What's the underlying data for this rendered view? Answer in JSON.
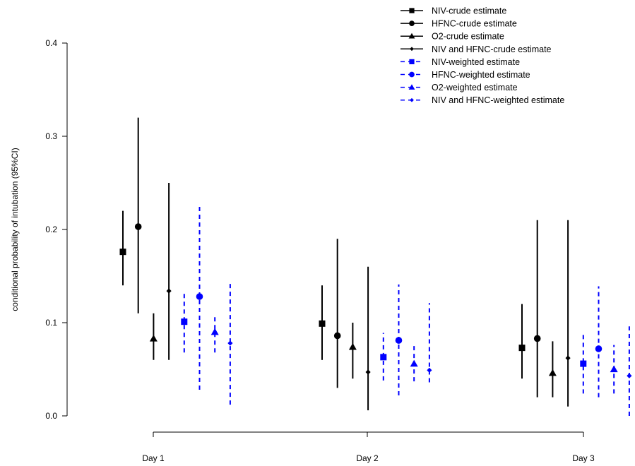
{
  "chart_data": {
    "type": "scatter",
    "ylabel": "conditional probability of intubation (95%CI)",
    "ylim": [
      0.0,
      0.4
    ],
    "yticks": [
      "0.0",
      "0.1",
      "0.2",
      "0.3",
      "0.4"
    ],
    "categories": [
      "Day 1",
      "Day 2",
      "Day 3"
    ],
    "legend_position": "top-right",
    "series": [
      {
        "name": "NIV-crude estimate",
        "color": "#000000",
        "marker": "square",
        "line": "solid",
        "points": [
          {
            "est": 0.176,
            "lo": 0.14,
            "hi": 0.22
          },
          {
            "est": 0.099,
            "lo": 0.06,
            "hi": 0.14
          },
          {
            "est": 0.073,
            "lo": 0.04,
            "hi": 0.12
          }
        ]
      },
      {
        "name": "HFNC-crude estimate",
        "color": "#000000",
        "marker": "circle",
        "line": "solid",
        "points": [
          {
            "est": 0.203,
            "lo": 0.11,
            "hi": 0.32
          },
          {
            "est": 0.086,
            "lo": 0.03,
            "hi": 0.19
          },
          {
            "est": 0.083,
            "lo": 0.02,
            "hi": 0.21
          }
        ]
      },
      {
        "name": "O2-crude estimate",
        "color": "#000000",
        "marker": "triangle",
        "line": "solid",
        "points": [
          {
            "est": 0.083,
            "lo": 0.06,
            "hi": 0.11
          },
          {
            "est": 0.074,
            "lo": 0.04,
            "hi": 0.1
          },
          {
            "est": 0.046,
            "lo": 0.02,
            "hi": 0.08
          }
        ]
      },
      {
        "name": "NIV and HFNC-crude estimate",
        "color": "#000000",
        "marker": "diamond",
        "line": "solid",
        "points": [
          {
            "est": 0.134,
            "lo": 0.06,
            "hi": 0.25
          },
          {
            "est": 0.047,
            "lo": 0.006,
            "hi": 0.16
          },
          {
            "est": 0.062,
            "lo": 0.01,
            "hi": 0.21
          }
        ]
      },
      {
        "name": "NIV-weighted estimate",
        "color": "#0000ff",
        "marker": "square",
        "line": "dashed",
        "points": [
          {
            "est": 0.101,
            "lo": 0.068,
            "hi": 0.131
          },
          {
            "est": 0.063,
            "lo": 0.038,
            "hi": 0.089
          },
          {
            "est": 0.056,
            "lo": 0.024,
            "hi": 0.087
          }
        ]
      },
      {
        "name": "HFNC-weighted estimate",
        "color": "#0000ff",
        "marker": "circle",
        "line": "dashed",
        "points": [
          {
            "est": 0.128,
            "lo": 0.028,
            "hi": 0.225
          },
          {
            "est": 0.081,
            "lo": 0.022,
            "hi": 0.141
          },
          {
            "est": 0.072,
            "lo": 0.02,
            "hi": 0.139
          }
        ]
      },
      {
        "name": "O2-weighted estimate",
        "color": "#0000ff",
        "marker": "triangle",
        "line": "dashed",
        "points": [
          {
            "est": 0.09,
            "lo": 0.068,
            "hi": 0.109
          },
          {
            "est": 0.056,
            "lo": 0.037,
            "hi": 0.076
          },
          {
            "est": 0.05,
            "lo": 0.024,
            "hi": 0.076
          }
        ]
      },
      {
        "name": "NIV and HFNC-weighted estimate",
        "color": "#0000ff",
        "marker": "diamond",
        "line": "dashed",
        "points": [
          {
            "est": 0.078,
            "lo": 0.012,
            "hi": 0.142
          },
          {
            "est": 0.049,
            "lo": 0.036,
            "hi": 0.121
          },
          {
            "est": 0.043,
            "lo": 0.0,
            "hi": 0.096
          }
        ]
      }
    ]
  }
}
